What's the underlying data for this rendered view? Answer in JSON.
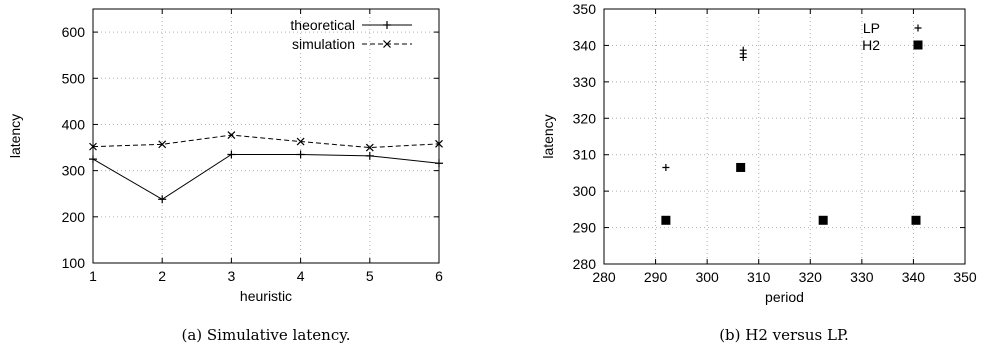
{
  "chart_data": [
    {
      "type": "line",
      "caption": "(a) Simulative latency.",
      "xlabel": "heuristic",
      "ylabel": "latency",
      "x": [
        1,
        2,
        3,
        4,
        5,
        6
      ],
      "xlim": [
        1,
        6
      ],
      "ylim": [
        100,
        650
      ],
      "xticks": [
        1,
        2,
        3,
        4,
        5,
        6
      ],
      "yticks": [
        100,
        200,
        300,
        400,
        500,
        600
      ],
      "grid": true,
      "legend_position": "top-right",
      "series": [
        {
          "name": "theoretical",
          "style": "solid",
          "marker": "plus",
          "values": [
            325,
            238,
            335,
            335,
            332,
            316
          ]
        },
        {
          "name": "simulation",
          "style": "dashed",
          "marker": "cross",
          "values": [
            352,
            357,
            377,
            363,
            350,
            358
          ]
        }
      ]
    },
    {
      "type": "scatter",
      "caption": "(b) H2 versus LP.",
      "xlabel": "period",
      "ylabel": "latency",
      "xlim": [
        280,
        350
      ],
      "ylim": [
        280,
        350
      ],
      "xticks": [
        280,
        290,
        300,
        310,
        320,
        330,
        340,
        350
      ],
      "yticks": [
        280,
        290,
        300,
        310,
        320,
        330,
        340,
        350
      ],
      "grid": true,
      "legend_position": "top-right",
      "series": [
        {
          "name": "LP",
          "marker": "plus",
          "points": [
            [
              292,
              306.5
            ],
            [
              307,
              336.7
            ],
            [
              307,
              337.7
            ],
            [
              307,
              338.7
            ]
          ]
        },
        {
          "name": "H2",
          "marker": "square",
          "points": [
            [
              292,
              292
            ],
            [
              306.5,
              306.5
            ],
            [
              322.5,
              292
            ],
            [
              340.5,
              292
            ]
          ]
        }
      ]
    }
  ]
}
